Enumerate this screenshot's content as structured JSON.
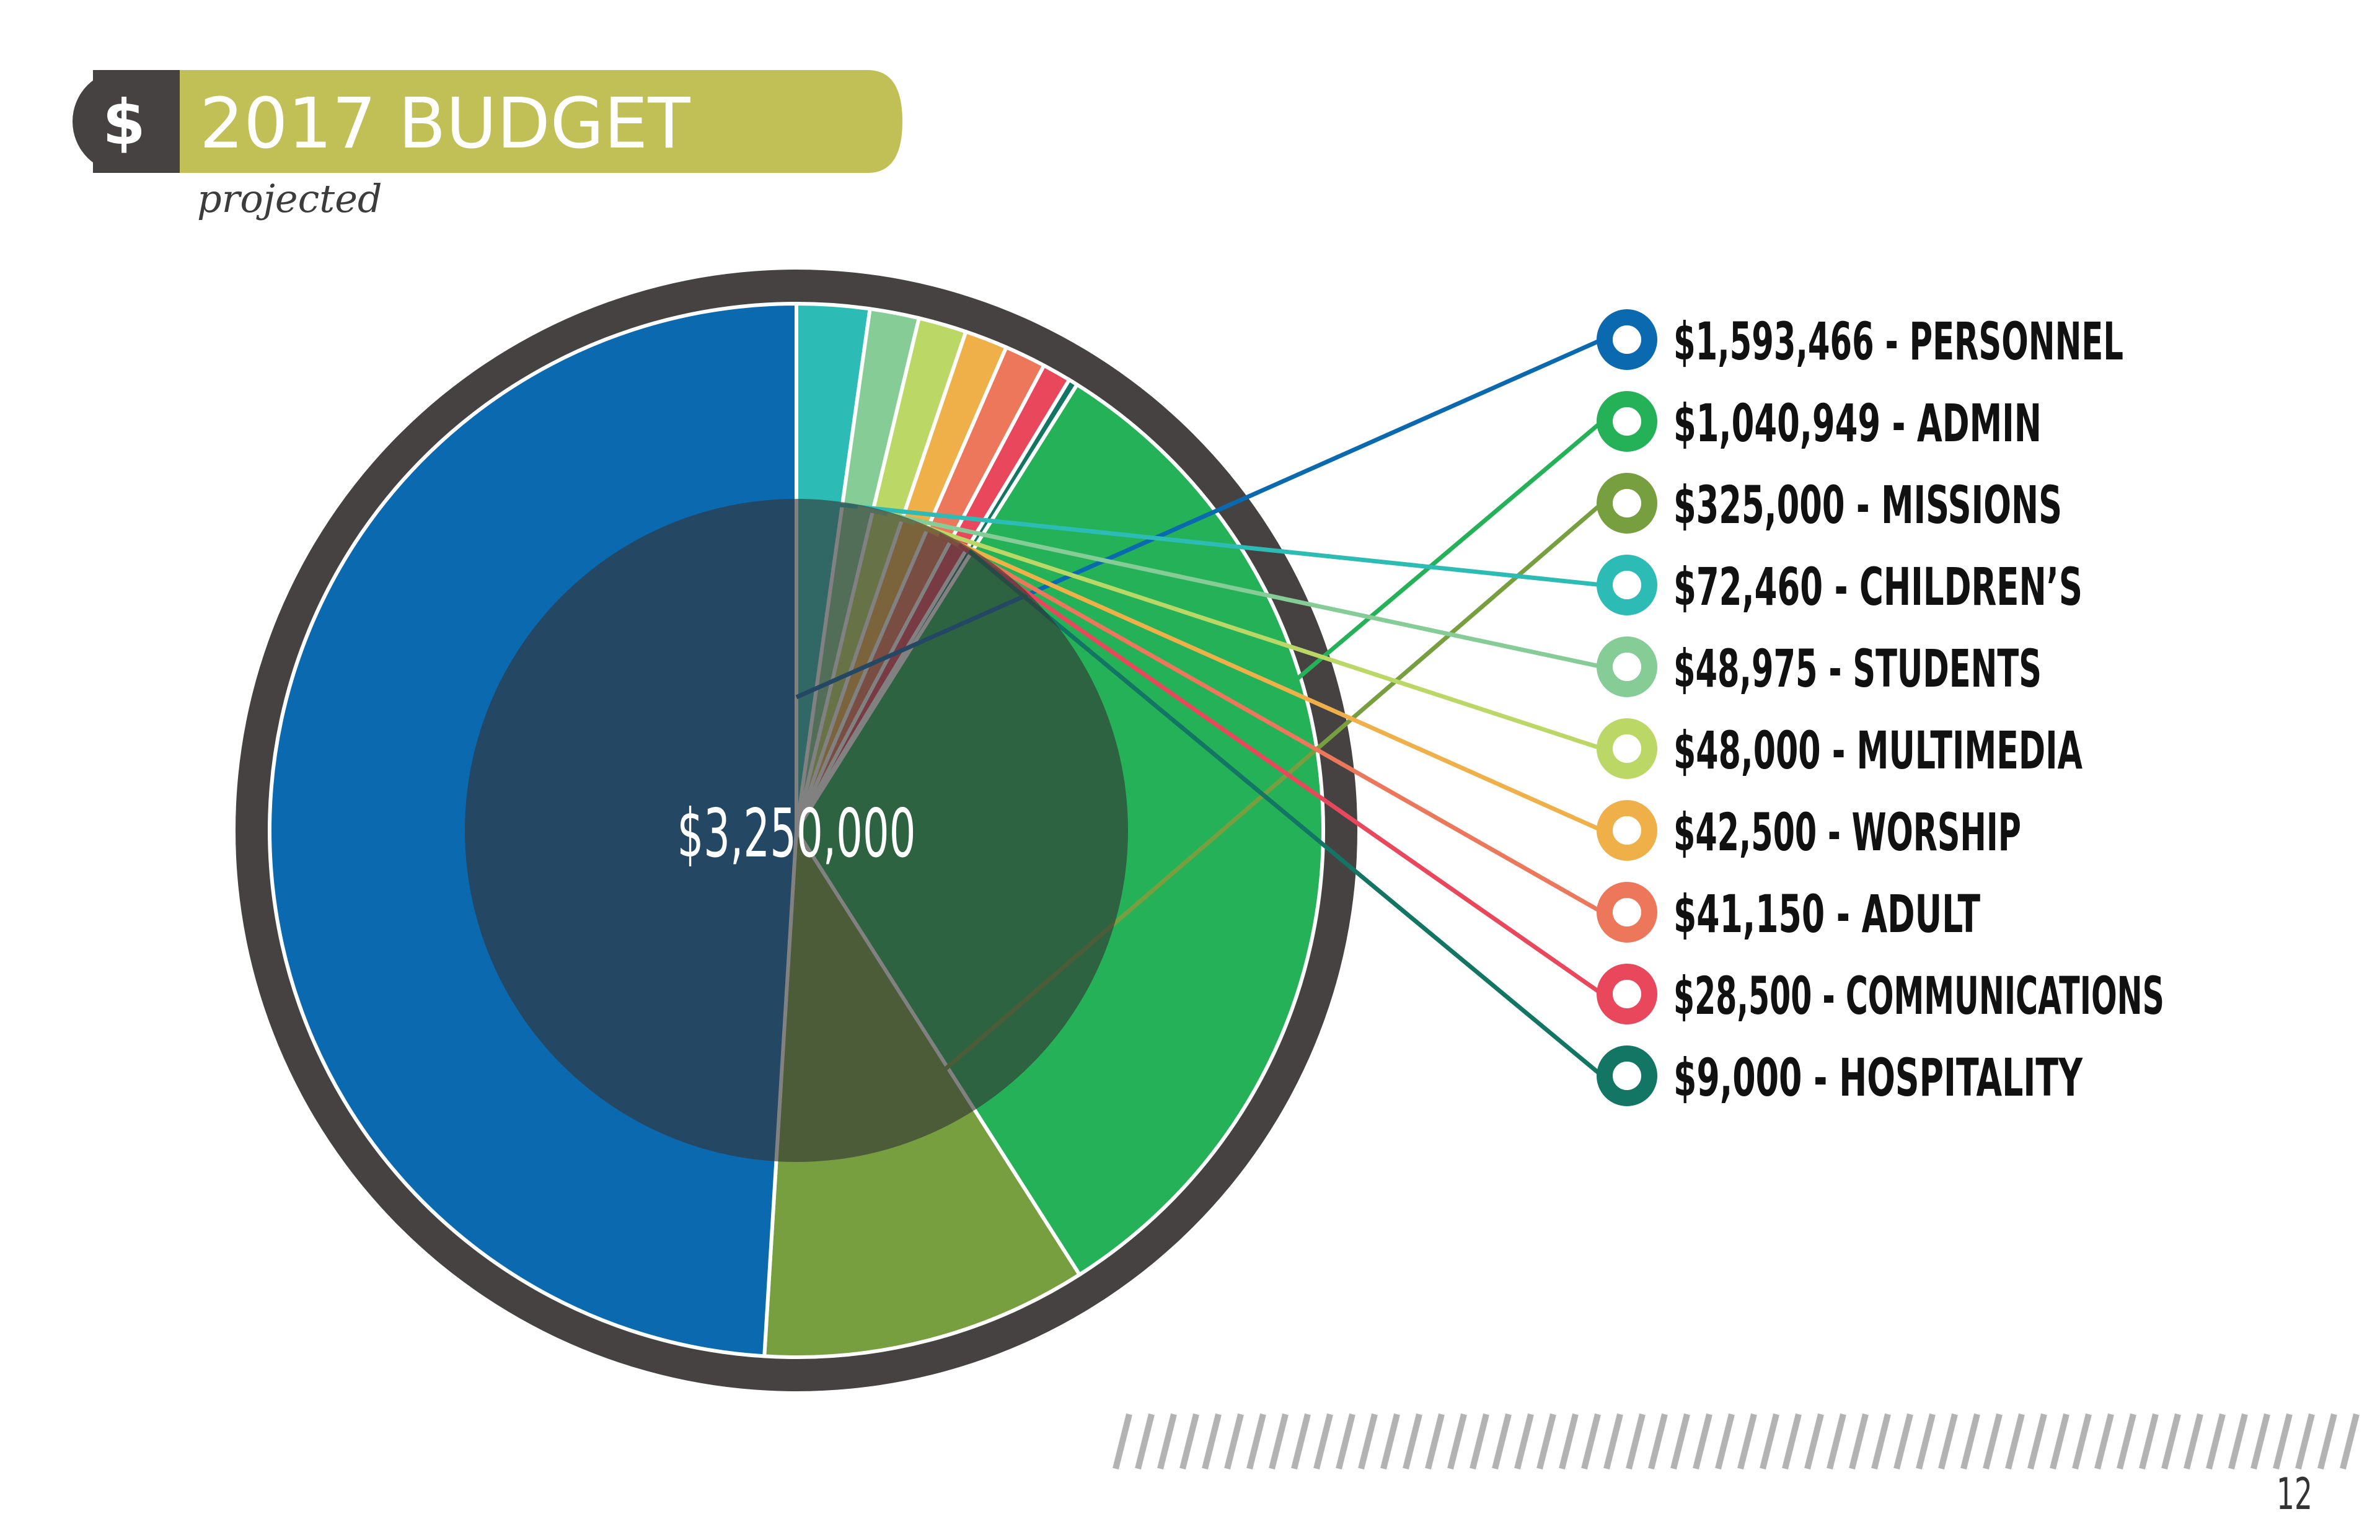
{
  "header": {
    "icon_symbol": "$",
    "title": "2017 BUDGET",
    "subtitle": "projected",
    "band_color": "#c1c056",
    "dark_color": "#464242"
  },
  "page_number": "12",
  "chart_data": {
    "type": "pie",
    "title": "2017 BUDGET",
    "subtitle": "projected",
    "total_label": "$3,250,000",
    "total": 3250000,
    "legend_position": "right",
    "slices": [
      {
        "label": "$1,593,466 - PERSONNEL",
        "category": "PERSONNEL",
        "value": 1593466,
        "color": "#0b69b0"
      },
      {
        "label": "$1,040,949 - ADMIN",
        "category": "ADMIN",
        "value": 1040949,
        "color": "#25b158"
      },
      {
        "label": "$325,000 - MISSIONS",
        "category": "MISSIONS",
        "value": 325000,
        "color": "#779f3f"
      },
      {
        "label": "$72,460 - CHILDREN’S",
        "category": "CHILDREN’S",
        "value": 72460,
        "color": "#2dbcb5"
      },
      {
        "label": "$48,975 - STUDENTS",
        "category": "STUDENTS",
        "value": 48975,
        "color": "#85cc96"
      },
      {
        "label": "$48,000 - MULTIMEDIA",
        "category": "MULTIMEDIA",
        "value": 48000,
        "color": "#bbd866"
      },
      {
        "label": "$42,500 - WORSHIP",
        "category": "WORSHIP",
        "value": 42500,
        "color": "#efb04a"
      },
      {
        "label": "$41,150 - ADULT",
        "category": "ADULT",
        "value": 41150,
        "color": "#ed775b"
      },
      {
        "label": "$28,500 - COMMUNICATIONS",
        "category": "COMMUNICATIONS",
        "value": 28500,
        "color": "#e9485c"
      },
      {
        "label": "$9,000 - HOSPITALITY",
        "category": "HOSPITALITY",
        "value": 9000,
        "color": "#137564"
      }
    ],
    "draw_order": [
      "CHILDREN’S",
      "STUDENTS",
      "MULTIMEDIA",
      "WORSHIP",
      "ADULT",
      "COMMUNICATIONS",
      "HOSPITALITY",
      "ADMIN",
      "MISSIONS",
      "PERSONNEL"
    ]
  }
}
